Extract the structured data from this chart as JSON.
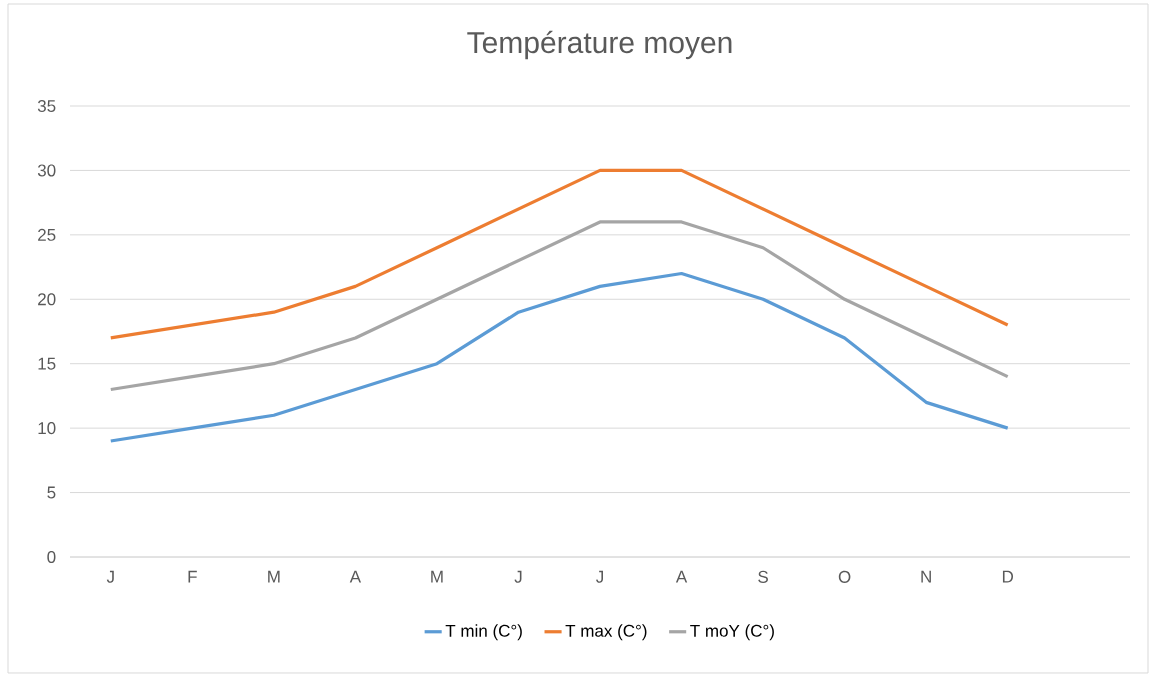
{
  "chart_data": {
    "type": "line",
    "title": "Température moyen",
    "categories": [
      "J",
      "F",
      "M",
      "A",
      "M",
      "J",
      "J",
      "A",
      "S",
      "O",
      "N",
      "D",
      null
    ],
    "series": [
      {
        "name": "T min (C°)",
        "color": "#5b9bd5",
        "values": [
          9,
          10,
          11,
          13,
          15,
          19,
          21,
          22,
          20,
          17,
          12,
          10,
          null
        ]
      },
      {
        "name": "T max (C°)",
        "color": "#ed7d31",
        "values": [
          17,
          18,
          19,
          21,
          24,
          27,
          30,
          30,
          27,
          24,
          21,
          18,
          null
        ]
      },
      {
        "name": "T moY (C°)",
        "color": "#a5a5a5",
        "values": [
          13,
          14,
          15,
          17,
          20,
          23,
          26,
          26,
          24,
          20,
          17,
          14,
          null
        ]
      }
    ],
    "ylim": [
      0,
      35
    ],
    "yticks": [
      0,
      5,
      10,
      15,
      20,
      25,
      30,
      35
    ],
    "grid": "y",
    "legend": "bottom",
    "marker": "none",
    "line_style": "solid"
  }
}
